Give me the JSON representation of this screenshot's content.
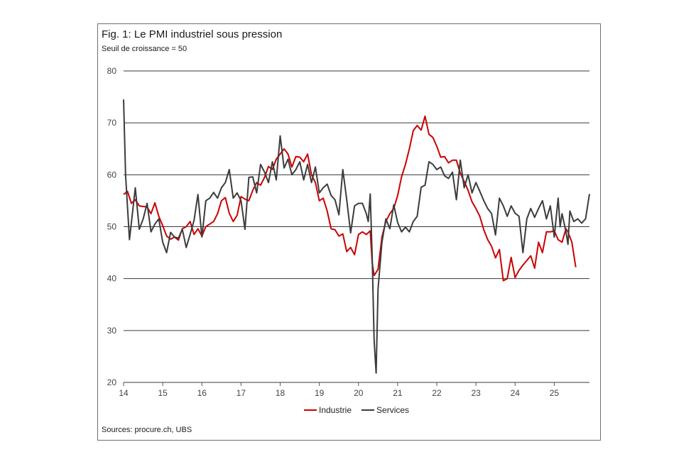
{
  "title": "Fig. 1: Le PMI industriel sous pression",
  "subtitle": "Seuil de croissance = 50",
  "source": "Sources: procure.ch, UBS",
  "colors": {
    "industrie": "#cc0000",
    "services": "#3c3c3c",
    "grid": "#3a3a3a"
  },
  "chart_data": {
    "type": "line",
    "title": "Fig. 1: Le PMI industriel sous pression",
    "subtitle": "Seuil de croissance = 50",
    "xlabel": "",
    "ylabel": "",
    "xlim": [
      2014.0,
      2025.4
    ],
    "ylim": [
      20,
      80
    ],
    "yticks": [
      20,
      30,
      40,
      50,
      60,
      70,
      80
    ],
    "xticks": [
      2014,
      2015,
      2016,
      2017,
      2018,
      2019,
      2020,
      2021,
      2022,
      2023,
      2024,
      2025
    ],
    "xtick_labels": [
      "14",
      "15",
      "16",
      "17",
      "18",
      "19",
      "20",
      "21",
      "22",
      "23",
      "24",
      "25"
    ],
    "grid": "horizontal",
    "legend_position": "bottom",
    "series": [
      {
        "name": "Industrie",
        "color": "#cc0000",
        "points": [
          [
            2014.0,
            56.2
          ],
          [
            2014.1,
            56.8
          ],
          [
            2014.2,
            54.5
          ],
          [
            2014.3,
            55.2
          ],
          [
            2014.4,
            54.0
          ],
          [
            2014.6,
            53.8
          ],
          [
            2014.7,
            52.5
          ],
          [
            2014.8,
            54.6
          ],
          [
            2014.9,
            52.0
          ],
          [
            2015.0,
            50.2
          ],
          [
            2015.1,
            48.2
          ],
          [
            2015.2,
            47.6
          ],
          [
            2015.3,
            48.0
          ],
          [
            2015.4,
            47.4
          ],
          [
            2015.5,
            49.6
          ],
          [
            2015.6,
            50.0
          ],
          [
            2015.7,
            51.0
          ],
          [
            2015.8,
            48.5
          ],
          [
            2015.9,
            49.6
          ],
          [
            2016.0,
            48.2
          ],
          [
            2016.1,
            50.0
          ],
          [
            2016.2,
            50.5
          ],
          [
            2016.3,
            51.0
          ],
          [
            2016.4,
            52.5
          ],
          [
            2016.5,
            55.0
          ],
          [
            2016.6,
            55.6
          ],
          [
            2016.7,
            52.6
          ],
          [
            2016.8,
            51.0
          ],
          [
            2016.9,
            52.2
          ],
          [
            2017.0,
            55.8
          ],
          [
            2017.1,
            55.3
          ],
          [
            2017.2,
            55.0
          ],
          [
            2017.3,
            57.0
          ],
          [
            2017.4,
            58.5
          ],
          [
            2017.5,
            58.0
          ],
          [
            2017.6,
            59.5
          ],
          [
            2017.7,
            61.6
          ],
          [
            2017.8,
            61.0
          ],
          [
            2017.9,
            63.0
          ],
          [
            2018.0,
            64.0
          ],
          [
            2018.1,
            65.0
          ],
          [
            2018.2,
            64.0
          ],
          [
            2018.3,
            61.5
          ],
          [
            2018.4,
            63.5
          ],
          [
            2018.5,
            63.4
          ],
          [
            2018.6,
            62.5
          ],
          [
            2018.7,
            64.0
          ],
          [
            2018.8,
            60.0
          ],
          [
            2018.9,
            58.5
          ],
          [
            2019.0,
            55.0
          ],
          [
            2019.1,
            55.5
          ],
          [
            2019.2,
            53.0
          ],
          [
            2019.3,
            49.6
          ],
          [
            2019.4,
            49.4
          ],
          [
            2019.5,
            48.2
          ],
          [
            2019.6,
            48.6
          ],
          [
            2019.7,
            45.2
          ],
          [
            2019.8,
            46.0
          ],
          [
            2019.9,
            44.6
          ],
          [
            2020.0,
            48.5
          ],
          [
            2020.1,
            49.0
          ],
          [
            2020.2,
            48.5
          ],
          [
            2020.3,
            49.2
          ],
          [
            2020.35,
            43.0
          ],
          [
            2020.4,
            40.6
          ],
          [
            2020.5,
            41.8
          ],
          [
            2020.6,
            48.0
          ],
          [
            2020.7,
            51.0
          ],
          [
            2020.8,
            52.5
          ],
          [
            2020.9,
            53.5
          ],
          [
            2021.0,
            56.0
          ],
          [
            2021.1,
            59.6
          ],
          [
            2021.2,
            62.0
          ],
          [
            2021.3,
            65.0
          ],
          [
            2021.4,
            68.5
          ],
          [
            2021.5,
            69.5
          ],
          [
            2021.6,
            68.6
          ],
          [
            2021.7,
            71.3
          ],
          [
            2021.8,
            67.8
          ],
          [
            2021.9,
            67.2
          ],
          [
            2022.0,
            65.5
          ],
          [
            2022.1,
            63.4
          ],
          [
            2022.2,
            63.5
          ],
          [
            2022.3,
            62.3
          ],
          [
            2022.4,
            62.8
          ],
          [
            2022.5,
            62.8
          ],
          [
            2022.6,
            60.3
          ],
          [
            2022.7,
            58.7
          ],
          [
            2022.8,
            57.0
          ],
          [
            2022.9,
            54.8
          ],
          [
            2023.0,
            53.5
          ],
          [
            2023.1,
            52.0
          ],
          [
            2023.2,
            49.4
          ],
          [
            2023.3,
            47.5
          ],
          [
            2023.4,
            46.2
          ],
          [
            2023.5,
            44.0
          ],
          [
            2023.6,
            45.6
          ],
          [
            2023.7,
            39.6
          ],
          [
            2023.8,
            40.0
          ],
          [
            2023.9,
            44.1
          ],
          [
            2024.0,
            40.2
          ],
          [
            2024.1,
            41.6
          ],
          [
            2024.2,
            42.6
          ],
          [
            2024.3,
            43.5
          ],
          [
            2024.4,
            44.4
          ],
          [
            2024.5,
            42.0
          ],
          [
            2024.6,
            47.0
          ],
          [
            2024.7,
            45.0
          ],
          [
            2024.8,
            49.0
          ],
          [
            2024.9,
            49.0
          ],
          [
            2025.0,
            49.2
          ],
          [
            2025.1,
            47.5
          ],
          [
            2025.2,
            47.0
          ],
          [
            2025.3,
            49.6
          ],
          [
            2025.35,
            49.0
          ],
          [
            2025.45,
            47.0
          ],
          [
            2025.55,
            42.2
          ]
        ]
      },
      {
        "name": "Services",
        "color": "#3c3c3c",
        "points": [
          [
            2014.0,
            74.5
          ],
          [
            2014.05,
            60.0
          ],
          [
            2014.15,
            47.5
          ],
          [
            2014.3,
            57.5
          ],
          [
            2014.4,
            49.5
          ],
          [
            2014.5,
            51.5
          ],
          [
            2014.6,
            54.5
          ],
          [
            2014.7,
            49.0
          ],
          [
            2014.8,
            50.5
          ],
          [
            2014.9,
            51.5
          ],
          [
            2015.0,
            47.0
          ],
          [
            2015.1,
            45.0
          ],
          [
            2015.2,
            48.9
          ],
          [
            2015.3,
            48.0
          ],
          [
            2015.4,
            47.8
          ],
          [
            2015.5,
            49.5
          ],
          [
            2015.6,
            46.0
          ],
          [
            2015.7,
            48.5
          ],
          [
            2015.8,
            51.2
          ],
          [
            2015.9,
            56.2
          ],
          [
            2016.0,
            48.0
          ],
          [
            2016.1,
            55.0
          ],
          [
            2016.2,
            55.5
          ],
          [
            2016.3,
            56.6
          ],
          [
            2016.4,
            55.5
          ],
          [
            2016.5,
            57.5
          ],
          [
            2016.6,
            58.5
          ],
          [
            2016.7,
            61.0
          ],
          [
            2016.8,
            55.5
          ],
          [
            2016.9,
            56.5
          ],
          [
            2017.0,
            55.0
          ],
          [
            2017.1,
            49.5
          ],
          [
            2017.2,
            59.5
          ],
          [
            2017.3,
            59.6
          ],
          [
            2017.4,
            56.5
          ],
          [
            2017.5,
            62.0
          ],
          [
            2017.6,
            60.5
          ],
          [
            2017.7,
            58.5
          ],
          [
            2017.8,
            62.5
          ],
          [
            2017.9,
            59.0
          ],
          [
            2018.0,
            67.5
          ],
          [
            2018.1,
            61.3
          ],
          [
            2018.2,
            63.0
          ],
          [
            2018.3,
            60.0
          ],
          [
            2018.4,
            61.0
          ],
          [
            2018.5,
            62.5
          ],
          [
            2018.6,
            59.0
          ],
          [
            2018.7,
            62.0
          ],
          [
            2018.8,
            58.5
          ],
          [
            2018.9,
            61.5
          ],
          [
            2019.0,
            56.5
          ],
          [
            2019.1,
            57.5
          ],
          [
            2019.2,
            58.2
          ],
          [
            2019.3,
            56.0
          ],
          [
            2019.4,
            55.2
          ],
          [
            2019.5,
            52.3
          ],
          [
            2019.6,
            61.0
          ],
          [
            2019.7,
            55.2
          ],
          [
            2019.8,
            48.8
          ],
          [
            2019.9,
            54.0
          ],
          [
            2020.0,
            54.5
          ],
          [
            2020.1,
            54.5
          ],
          [
            2020.2,
            52.5
          ],
          [
            2020.25,
            51.0
          ],
          [
            2020.3,
            56.3
          ],
          [
            2020.35,
            44.0
          ],
          [
            2020.4,
            28.0
          ],
          [
            2020.45,
            21.8
          ],
          [
            2020.5,
            38.0
          ],
          [
            2020.6,
            47.0
          ],
          [
            2020.7,
            51.5
          ],
          [
            2020.8,
            49.6
          ],
          [
            2020.9,
            54.2
          ],
          [
            2021.0,
            50.8
          ],
          [
            2021.1,
            49.0
          ],
          [
            2021.2,
            49.9
          ],
          [
            2021.3,
            49.0
          ],
          [
            2021.4,
            51.0
          ],
          [
            2021.5,
            52.0
          ],
          [
            2021.6,
            57.6
          ],
          [
            2021.7,
            58.0
          ],
          [
            2021.8,
            62.5
          ],
          [
            2021.9,
            62.0
          ],
          [
            2022.0,
            61.0
          ],
          [
            2022.1,
            61.5
          ],
          [
            2022.2,
            59.8
          ],
          [
            2022.3,
            59.3
          ],
          [
            2022.4,
            60.5
          ],
          [
            2022.5,
            55.2
          ],
          [
            2022.6,
            62.8
          ],
          [
            2022.7,
            57.5
          ],
          [
            2022.8,
            60.0
          ],
          [
            2022.9,
            56.5
          ],
          [
            2023.0,
            58.5
          ],
          [
            2023.1,
            56.8
          ],
          [
            2023.2,
            55.0
          ],
          [
            2023.3,
            53.5
          ],
          [
            2023.4,
            52.5
          ],
          [
            2023.5,
            48.4
          ],
          [
            2023.6,
            55.5
          ],
          [
            2023.7,
            54.0
          ],
          [
            2023.8,
            52.0
          ],
          [
            2023.9,
            54.0
          ],
          [
            2024.0,
            52.6
          ],
          [
            2024.1,
            52.0
          ],
          [
            2024.2,
            45.0
          ],
          [
            2024.3,
            51.5
          ],
          [
            2024.4,
            53.5
          ],
          [
            2024.5,
            51.8
          ],
          [
            2024.6,
            53.5
          ],
          [
            2024.7,
            55.0
          ],
          [
            2024.8,
            51.5
          ],
          [
            2024.9,
            54.0
          ],
          [
            2025.0,
            48.0
          ],
          [
            2025.1,
            55.5
          ],
          [
            2025.15,
            50.0
          ],
          [
            2025.2,
            52.5
          ],
          [
            2025.3,
            49.0
          ],
          [
            2025.35,
            46.6
          ],
          [
            2025.4,
            53.0
          ],
          [
            2025.5,
            51.0
          ],
          [
            2025.6,
            51.5
          ],
          [
            2025.7,
            50.7
          ],
          [
            2025.8,
            51.5
          ],
          [
            2025.9,
            56.3
          ]
        ]
      }
    ]
  }
}
